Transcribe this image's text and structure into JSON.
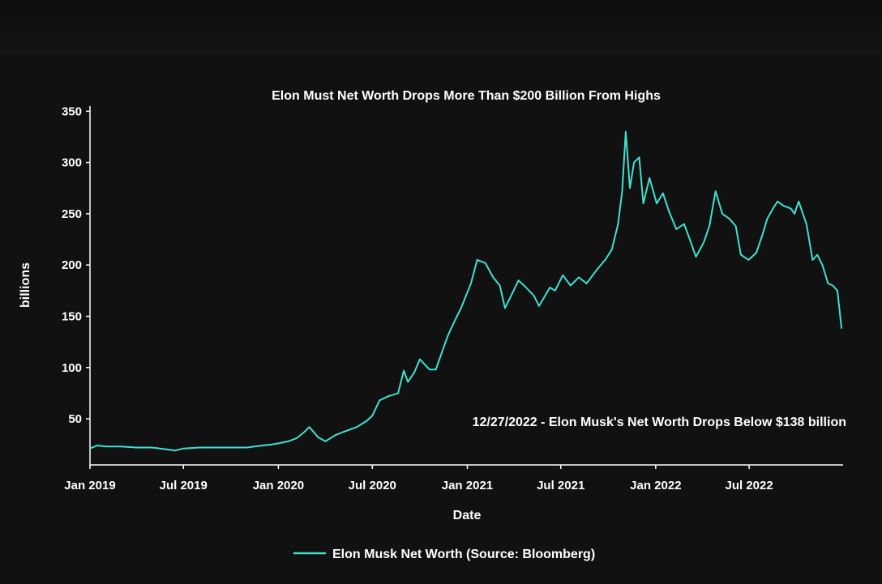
{
  "chart_data": {
    "type": "line",
    "title": "Elon Must Net Worth Drops More Than $200 Billion From Highs",
    "xlabel": "Date",
    "ylabel": "billions",
    "x_tick_labels": [
      "Jan 2019",
      "Jul 2019",
      "Jan 2020",
      "Jul 2020",
      "Jan 2021",
      "Jul 2021",
      "Jan 2022",
      "Jul 2022"
    ],
    "x_tick_dates": [
      "2019-01-01",
      "2019-07-01",
      "2020-01-01",
      "2020-07-01",
      "2021-01-01",
      "2021-07-01",
      "2022-01-01",
      "2022-07-01"
    ],
    "y_ticks": [
      50,
      100,
      150,
      200,
      250,
      300,
      350
    ],
    "xlim": [
      "2019-01-01",
      "2022-12-30"
    ],
    "ylim": [
      5,
      355
    ],
    "grid": false,
    "legend_position": "bottom-center",
    "color": "#40e0d0",
    "annotation": "12/27/2022 - Elon Musk's Net Worth Drops Below $138 billion",
    "series": [
      {
        "name": "Elon Musk Net Worth (Source: Bloomberg)",
        "x": [
          "2019-01-01",
          "2019-01-15",
          "2019-02-01",
          "2019-03-01",
          "2019-04-01",
          "2019-05-01",
          "2019-06-01",
          "2019-06-15",
          "2019-07-01",
          "2019-08-01",
          "2019-09-01",
          "2019-10-01",
          "2019-11-01",
          "2019-12-01",
          "2019-12-20",
          "2020-01-01",
          "2020-01-20",
          "2020-02-05",
          "2020-02-20",
          "2020-03-01",
          "2020-03-18",
          "2020-04-01",
          "2020-04-20",
          "2020-05-05",
          "2020-06-01",
          "2020-06-20",
          "2020-07-01",
          "2020-07-15",
          "2020-08-01",
          "2020-08-20",
          "2020-08-31",
          "2020-09-08",
          "2020-09-20",
          "2020-10-01",
          "2020-10-20",
          "2020-11-01",
          "2020-11-15",
          "2020-11-25",
          "2020-12-10",
          "2020-12-20",
          "2021-01-08",
          "2021-01-20",
          "2021-02-05",
          "2021-02-20",
          "2021-03-05",
          "2021-03-15",
          "2021-03-25",
          "2021-04-10",
          "2021-04-25",
          "2021-05-10",
          "2021-05-20",
          "2021-06-10",
          "2021-06-20",
          "2021-07-05",
          "2021-07-20",
          "2021-08-05",
          "2021-08-20",
          "2021-09-10",
          "2021-09-25",
          "2021-10-08",
          "2021-10-20",
          "2021-10-28",
          "2021-11-04",
          "2021-11-12",
          "2021-11-20",
          "2021-11-30",
          "2021-12-08",
          "2021-12-20",
          "2022-01-03",
          "2022-01-15",
          "2022-01-27",
          "2022-02-10",
          "2022-02-25",
          "2022-03-08",
          "2022-03-20",
          "2022-04-04",
          "2022-04-15",
          "2022-04-27",
          "2022-05-10",
          "2022-05-24",
          "2022-06-05",
          "2022-06-15",
          "2022-06-30",
          "2022-07-15",
          "2022-07-27",
          "2022-08-05",
          "2022-08-16",
          "2022-08-25",
          "2022-09-05",
          "2022-09-20",
          "2022-09-27",
          "2022-10-05",
          "2022-10-20",
          "2022-11-01",
          "2022-11-10",
          "2022-11-20",
          "2022-12-01",
          "2022-12-10",
          "2022-12-19",
          "2022-12-27"
        ],
        "y": [
          21,
          24,
          23,
          23,
          22,
          22,
          20,
          19,
          21,
          22,
          22,
          22,
          22,
          24,
          25,
          26,
          28,
          31,
          37,
          42,
          32,
          28,
          34,
          37,
          42,
          48,
          53,
          68,
          72,
          75,
          97,
          86,
          95,
          108,
          98,
          98,
          118,
          132,
          148,
          158,
          182,
          205,
          202,
          188,
          180,
          158,
          168,
          185,
          178,
          170,
          160,
          178,
          175,
          190,
          180,
          188,
          182,
          196,
          205,
          215,
          240,
          272,
          330,
          275,
          300,
          305,
          260,
          285,
          260,
          270,
          252,
          235,
          240,
          225,
          208,
          222,
          238,
          272,
          250,
          245,
          238,
          210,
          205,
          212,
          230,
          245,
          255,
          262,
          258,
          255,
          250,
          262,
          240,
          205,
          210,
          200,
          182,
          180,
          175,
          138
        ]
      }
    ]
  }
}
